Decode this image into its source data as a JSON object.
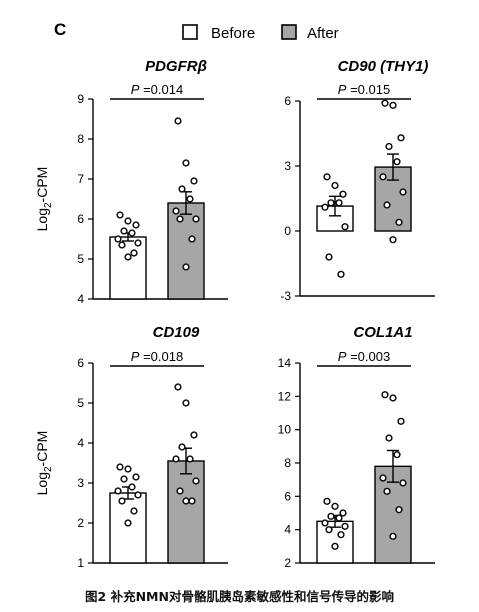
{
  "figure": {
    "panel_letter": "C",
    "legend": {
      "before": "Before",
      "after": "After"
    },
    "colors": {
      "before_fill": "#ffffff",
      "after_fill": "#a6a6a6",
      "outline": "#000000"
    },
    "caption": "图2 补充NMN对骨骼肌胰岛素敏感性和信号传导的影响",
    "ylabel_prefix": "Log",
    "ylabel_sub": "2",
    "ylabel_suffix": "-CPM"
  },
  "chart_data": [
    {
      "type": "bar",
      "title": "PDGFRβ",
      "p_label": "P",
      "p_value": " =0.014",
      "categories": [
        "Before",
        "After"
      ],
      "values": [
        5.55,
        6.4
      ],
      "errors": [
        0.1,
        0.28
      ],
      "ylim": [
        4,
        9
      ],
      "yticks": [
        "4",
        "5",
        "6",
        "7",
        "8",
        "9"
      ],
      "ylabel": "Log2-CPM",
      "points": [
        [
          6.1,
          5.95,
          5.85,
          5.7,
          5.65,
          5.5,
          5.4,
          5.35,
          5.15,
          5.05
        ],
        [
          8.45,
          7.4,
          6.95,
          6.75,
          6.5,
          6.2,
          6.0,
          6.0,
          5.5,
          4.8
        ]
      ]
    },
    {
      "type": "bar",
      "title": "CD90 (THY1)",
      "p_label": "P",
      "p_value": " =0.015",
      "categories": [
        "Before",
        "After"
      ],
      "values": [
        1.15,
        2.95
      ],
      "errors": [
        0.45,
        0.6
      ],
      "ylim": [
        -3,
        6
      ],
      "yticks": [
        "-3",
        "0",
        "3",
        "6"
      ],
      "ylabel": "",
      "points": [
        [
          2.5,
          2.1,
          1.7,
          1.3,
          1.3,
          1.1,
          0.2,
          -1.2,
          -2.0
        ],
        [
          5.9,
          5.8,
          4.3,
          3.9,
          3.2,
          2.5,
          1.8,
          1.2,
          0.4,
          -0.4
        ]
      ]
    },
    {
      "type": "bar",
      "title": "CD109",
      "p_label": "P",
      "p_value": " =0.018",
      "categories": [
        "Before",
        "After"
      ],
      "values": [
        2.75,
        3.55
      ],
      "errors": [
        0.15,
        0.32
      ],
      "ylim": [
        1,
        6
      ],
      "yticks": [
        "1",
        "2",
        "3",
        "4",
        "5",
        "6"
      ],
      "ylabel": "Log2-CPM",
      "points": [
        [
          3.4,
          3.35,
          3.15,
          3.1,
          2.9,
          2.8,
          2.7,
          2.55,
          2.3,
          2.0
        ],
        [
          5.4,
          5.0,
          4.2,
          3.9,
          3.6,
          3.6,
          3.05,
          2.8,
          2.55,
          2.55
        ]
      ]
    },
    {
      "type": "bar",
      "title": "COL1A1",
      "p_label": "P",
      "p_value": " =0.003",
      "categories": [
        "Before",
        "After"
      ],
      "values": [
        4.5,
        7.8
      ],
      "errors": [
        0.35,
        0.95
      ],
      "ylim": [
        2,
        14
      ],
      "yticks": [
        "2",
        "4",
        "6",
        "8",
        "10",
        "12",
        "14"
      ],
      "ylabel": "",
      "points": [
        [
          5.7,
          5.4,
          5.0,
          4.8,
          4.7,
          4.4,
          4.2,
          4.0,
          3.7,
          3.0
        ],
        [
          12.1,
          11.9,
          10.5,
          9.5,
          8.5,
          7.1,
          6.8,
          6.3,
          5.2,
          3.6
        ]
      ]
    }
  ]
}
